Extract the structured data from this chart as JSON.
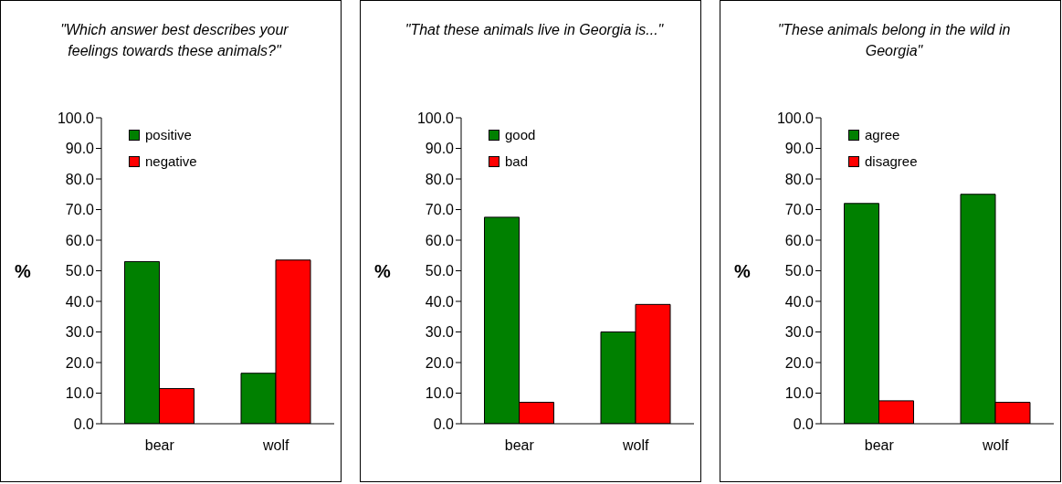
{
  "chart_data": [
    {
      "type": "bar",
      "title": "\"Which answer best describes your feelings towards these animals?\"",
      "ylabel": "%",
      "categories": [
        "bear",
        "wolf"
      ],
      "series": [
        {
          "name": "positive",
          "color": "#008000",
          "values": [
            53,
            16.5
          ]
        },
        {
          "name": "negative",
          "color": "#ff0000",
          "values": [
            11.5,
            53.5
          ]
        }
      ],
      "ylim": [
        0,
        100
      ],
      "yticks": [
        {
          "value": 0,
          "label": "0.0"
        },
        {
          "value": 10,
          "label": "10.0"
        },
        {
          "value": 20,
          "label": "20.0"
        },
        {
          "value": 30,
          "label": "30.0"
        },
        {
          "value": 40,
          "label": "40.0"
        },
        {
          "value": 50,
          "label": "50.0"
        },
        {
          "value": 60,
          "label": "60.0"
        },
        {
          "value": 70,
          "label": "70.0"
        },
        {
          "value": 80,
          "label": "80.0"
        },
        {
          "value": 90,
          "label": "90.0"
        },
        {
          "value": 100,
          "label": "100.0"
        }
      ],
      "grid": false,
      "legend": "top left"
    },
    {
      "type": "bar",
      "title": "\"That these animals live in Georgia is...\"",
      "ylabel": "%",
      "categories": [
        "bear",
        "wolf"
      ],
      "series": [
        {
          "name": "good",
          "color": "#008000",
          "values": [
            67.5,
            30
          ]
        },
        {
          "name": "bad",
          "color": "#ff0000",
          "values": [
            7,
            39
          ]
        }
      ],
      "ylim": [
        0,
        100
      ],
      "yticks": [
        {
          "value": 0,
          "label": "0.0"
        },
        {
          "value": 10,
          "label": "10.0"
        },
        {
          "value": 20,
          "label": "20.0"
        },
        {
          "value": 30,
          "label": "30.0"
        },
        {
          "value": 40,
          "label": "40.0"
        },
        {
          "value": 50,
          "label": "50.0"
        },
        {
          "value": 60,
          "label": "60.0"
        },
        {
          "value": 70,
          "label": "70.0"
        },
        {
          "value": 80,
          "label": "80.0"
        },
        {
          "value": 90,
          "label": "90.0"
        },
        {
          "value": 100,
          "label": "100.0"
        }
      ],
      "grid": false,
      "legend": "top left"
    },
    {
      "type": "bar",
      "title": "\"These animals belong in the wild in Georgia\"",
      "ylabel": "%",
      "categories": [
        "bear",
        "wolf"
      ],
      "series": [
        {
          "name": "agree",
          "color": "#008000",
          "values": [
            72,
            75
          ]
        },
        {
          "name": "disagree",
          "color": "#ff0000",
          "values": [
            7.5,
            7
          ]
        }
      ],
      "ylim": [
        0,
        100
      ],
      "yticks": [
        {
          "value": 0,
          "label": "0.0"
        },
        {
          "value": 10,
          "label": "10.0"
        },
        {
          "value": 20,
          "label": "20.0"
        },
        {
          "value": 30,
          "label": "30.0"
        },
        {
          "value": 40,
          "label": "40.0"
        },
        {
          "value": 50,
          "label": "50.0"
        },
        {
          "value": 60,
          "label": "60.0"
        },
        {
          "value": 70,
          "label": "70.0"
        },
        {
          "value": 80,
          "label": "80.0"
        },
        {
          "value": 90,
          "label": "90.0"
        },
        {
          "value": 100,
          "label": "100.0"
        }
      ],
      "grid": false,
      "legend": "top left"
    }
  ]
}
